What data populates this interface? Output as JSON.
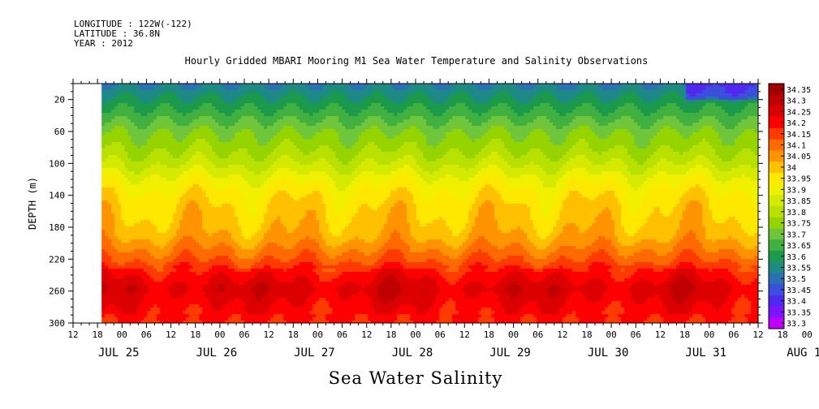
{
  "header": {
    "longitude": "LONGITUDE : 122W(-122)",
    "latitude": "LATITUDE : 36.8N",
    "year": "YEAR : 2012"
  },
  "chart_data": {
    "type": "heatmap",
    "title": "Hourly Gridded MBARI Mooring M1 Sea Water Temperature and Salinity Observations",
    "bottom_label": "Sea Water Salinity",
    "xlabel": "",
    "ylabel": "DEPTH (m)",
    "x_range_hours": [
      0,
      168
    ],
    "x_tick_hours": [
      "12",
      "18",
      "00",
      "06",
      "12",
      "18",
      "00",
      "06",
      "12",
      "18",
      "00",
      "06",
      "12",
      "18",
      "00",
      "06",
      "12",
      "18",
      "00",
      "06",
      "12",
      "18",
      "00",
      "06",
      "12",
      "18",
      "00",
      "06",
      "12",
      "18",
      "00",
      "06",
      "12"
    ],
    "date_labels": [
      "JUL 25",
      "JUL 26",
      "JUL 27",
      "JUL 28",
      "JUL 29",
      "JUL 30",
      "JUL 31",
      "AUG  1"
    ],
    "ylim": [
      300,
      0
    ],
    "y_ticks": [
      20,
      60,
      100,
      140,
      180,
      220,
      260,
      300
    ],
    "no_data_before_hour": 7,
    "colorbar_levels": [
      "34.35",
      "34.3",
      "34.25",
      "34.2",
      "34.15",
      "34.1",
      "34.05",
      "34",
      "33.95",
      "33.9",
      "33.85",
      "33.8",
      "33.75",
      "33.7",
      "33.65",
      "33.6",
      "33.55",
      "33.5",
      "33.45",
      "33.4",
      "33.35",
      "33.3"
    ],
    "colorbar_colors": [
      "#a00000",
      "#c00000",
      "#dc0000",
      "#ff0000",
      "#ff3a00",
      "#ff6a00",
      "#ff9400",
      "#ffc000",
      "#ffe800",
      "#f0f000",
      "#d4ea00",
      "#b8e000",
      "#96d400",
      "#70c63a",
      "#40b040",
      "#1c9a4c",
      "#1e8a86",
      "#2c70b4",
      "#3c4edc",
      "#5028f0",
      "#7c14ff",
      "#c000ff"
    ],
    "profile": [
      {
        "depth": 0,
        "salinity": 33.55
      },
      {
        "depth": 15,
        "salinity": 33.6
      },
      {
        "depth": 30,
        "salinity": 33.65
      },
      {
        "depth": 45,
        "salinity": 33.7
      },
      {
        "depth": 60,
        "salinity": 33.75
      },
      {
        "depth": 75,
        "salinity": 33.78
      },
      {
        "depth": 90,
        "salinity": 33.82
      },
      {
        "depth": 105,
        "salinity": 33.87
      },
      {
        "depth": 120,
        "salinity": 33.93
      },
      {
        "depth": 135,
        "salinity": 33.97
      },
      {
        "depth": 150,
        "salinity": 34.0
      },
      {
        "depth": 170,
        "salinity": 34.02
      },
      {
        "depth": 190,
        "salinity": 34.05
      },
      {
        "depth": 205,
        "salinity": 34.1
      },
      {
        "depth": 220,
        "salinity": 34.15
      },
      {
        "depth": 235,
        "salinity": 34.22
      },
      {
        "depth": 255,
        "salinity": 34.28
      },
      {
        "depth": 275,
        "salinity": 34.24
      },
      {
        "depth": 300,
        "salinity": 34.2
      }
    ]
  }
}
